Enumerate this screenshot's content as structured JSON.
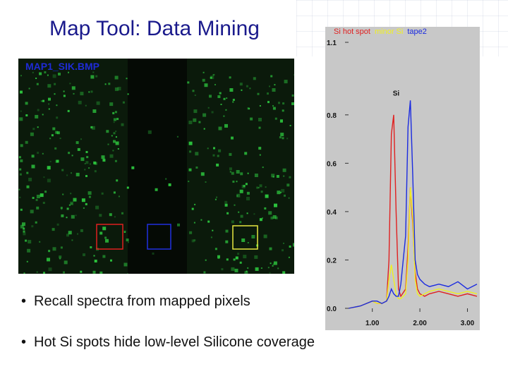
{
  "slide": {
    "title": "Map Tool:  Data Mining",
    "bullets": [
      "Recall spectra from mapped pixels",
      "Hot Si spots hide low-level Silicone coverage"
    ],
    "bullet_char": "•"
  },
  "map": {
    "label": "MAP1_SIK.BMP",
    "boxes": [
      {
        "name": "hot-spot-box",
        "color": "#e02020"
      },
      {
        "name": "tape-box",
        "color": "#2030e0"
      },
      {
        "name": "minor-si-box",
        "color": "#e8e840"
      }
    ],
    "pixel_color": "#2ecc40"
  },
  "spectrum": {
    "legend": [
      {
        "label": "Si hot spot",
        "color": "#e02020"
      },
      {
        "label": "minor Si",
        "color": "#f0f020"
      },
      {
        "label": "tape2",
        "color": "#1a2ae0"
      }
    ],
    "peak_label": "Si",
    "y_ticks": [
      "1.1",
      "0.8",
      "0.6",
      "0.4",
      "0.2",
      "0.0"
    ],
    "x_ticks": [
      "1.00",
      "2.00",
      "3.00"
    ]
  },
  "chart_data": {
    "type": "line",
    "x": [
      0.5,
      0.75,
      1.0,
      1.1,
      1.2,
      1.3,
      1.35,
      1.4,
      1.45,
      1.5,
      1.55,
      1.6,
      1.7,
      1.75,
      1.8,
      1.85,
      1.9,
      1.95,
      2.0,
      2.1,
      2.2,
      2.4,
      2.6,
      2.8,
      3.0,
      3.2
    ],
    "series": [
      {
        "name": "Si hot spot",
        "color": "#e02020",
        "values": [
          0.0,
          0.01,
          0.03,
          0.02,
          0.02,
          0.03,
          0.2,
          0.72,
          0.8,
          0.4,
          0.08,
          0.05,
          0.08,
          0.25,
          0.5,
          0.35,
          0.15,
          0.08,
          0.06,
          0.05,
          0.06,
          0.07,
          0.06,
          0.05,
          0.06,
          0.05
        ]
      },
      {
        "name": "minor Si",
        "color": "#f0f020",
        "values": [
          0.0,
          0.01,
          0.03,
          0.02,
          0.02,
          0.03,
          0.12,
          0.18,
          0.12,
          0.06,
          0.04,
          0.04,
          0.06,
          0.2,
          0.5,
          0.38,
          0.12,
          0.06,
          0.05,
          0.06,
          0.07,
          0.08,
          0.07,
          0.06,
          0.07,
          0.06
        ]
      },
      {
        "name": "tape2",
        "color": "#1a2ae0",
        "values": [
          0.0,
          0.01,
          0.03,
          0.03,
          0.02,
          0.03,
          0.05,
          0.08,
          0.06,
          0.05,
          0.05,
          0.1,
          0.3,
          0.75,
          0.86,
          0.55,
          0.2,
          0.14,
          0.12,
          0.1,
          0.09,
          0.1,
          0.09,
          0.11,
          0.08,
          0.1
        ]
      }
    ],
    "title": "",
    "xlabel": "",
    "ylabel": "",
    "xlim": [
      0.5,
      3.2
    ],
    "ylim": [
      0.0,
      1.1
    ],
    "annotations": [
      "Si"
    ],
    "grid": false,
    "legend": "top"
  }
}
